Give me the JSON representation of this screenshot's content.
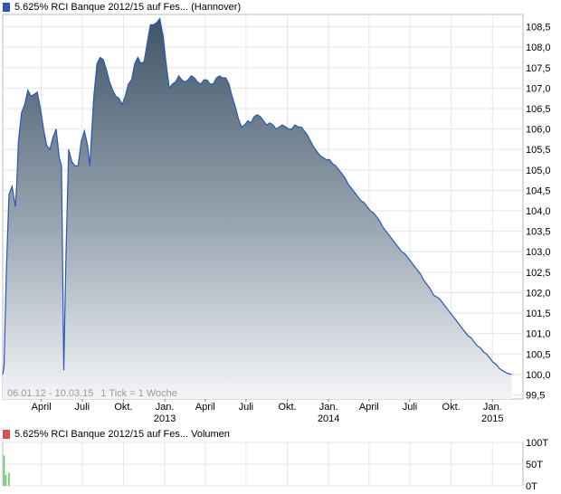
{
  "legend_price": {
    "swatch_color": "#2a56b8",
    "label": "5.625% RCI Banque 2012/15 auf Fes...",
    "exchange": "(Hannover)"
  },
  "legend_volume": {
    "swatch_color": "#d9534f",
    "label": "5.625% RCI Banque 2012/15 auf Fes...",
    "suffix": "Volumen"
  },
  "info": {
    "range": "06.01.12 - 10.03.15",
    "tick": "1 Tick = 1 Woche"
  },
  "chart_data": [
    {
      "type": "area",
      "title": "5.625% RCI Banque 2012/15 auf Fes... (Hannover)",
      "x_range": [
        "2012-01-06",
        "2015-03-10"
      ],
      "ylim": [
        99.4,
        108.8
      ],
      "y_ticks": [
        "99,5",
        "100,0",
        "100,5",
        "101,0",
        "101,5",
        "102,0",
        "102,5",
        "103,0",
        "103,5",
        "104,0",
        "104,5",
        "105,0",
        "105,5",
        "106,0",
        "106,5",
        "107,0",
        "107,5",
        "108,0",
        "108,5"
      ],
      "x_tick_labels": [
        {
          "date": "2012-04-01",
          "label": "April"
        },
        {
          "date": "2012-07-01",
          "label": "Juli"
        },
        {
          "date": "2012-10-01",
          "label": "Okt."
        },
        {
          "date": "2013-01-01",
          "label": "Jan.",
          "year": "2013"
        },
        {
          "date": "2013-04-01",
          "label": "April"
        },
        {
          "date": "2013-07-01",
          "label": "Juli"
        },
        {
          "date": "2013-10-01",
          "label": "Okt."
        },
        {
          "date": "2014-01-01",
          "label": "Jan.",
          "year": "2014"
        },
        {
          "date": "2014-04-01",
          "label": "April"
        },
        {
          "date": "2014-07-01",
          "label": "Juli"
        },
        {
          "date": "2014-10-01",
          "label": "Okt."
        },
        {
          "date": "2015-01-01",
          "label": "Jan.",
          "year": "2015"
        }
      ],
      "grid": true,
      "line_color": "#2a56b8",
      "fill_top_color": "#3f5566",
      "fill_bottom_color": "#f4f5f7",
      "series": [
        {
          "points": [
            [
              "2012-01-06",
              100.0
            ],
            [
              "2012-01-09",
              100.2
            ],
            [
              "2012-01-14",
              102.5
            ],
            [
              "2012-01-20",
              104.4
            ],
            [
              "2012-01-27",
              104.6
            ],
            [
              "2012-02-03",
              104.1
            ],
            [
              "2012-02-06",
              104.6
            ],
            [
              "2012-02-10",
              105.7
            ],
            [
              "2012-02-17",
              106.4
            ],
            [
              "2012-02-24",
              106.6
            ],
            [
              "2012-03-02",
              106.95
            ],
            [
              "2012-03-09",
              106.8
            ],
            [
              "2012-03-16",
              106.85
            ],
            [
              "2012-03-23",
              106.9
            ],
            [
              "2012-03-30",
              106.5
            ],
            [
              "2012-04-06",
              106.0
            ],
            [
              "2012-04-13",
              105.6
            ],
            [
              "2012-04-20",
              105.5
            ],
            [
              "2012-04-27",
              105.8
            ],
            [
              "2012-05-04",
              106.0
            ],
            [
              "2012-05-11",
              105.3
            ],
            [
              "2012-05-16",
              105.1
            ],
            [
              "2012-05-21",
              100.1
            ],
            [
              "2012-05-26",
              103.0
            ],
            [
              "2012-06-01",
              105.5
            ],
            [
              "2012-06-08",
              105.2
            ],
            [
              "2012-06-15",
              105.1
            ],
            [
              "2012-06-22",
              105.1
            ],
            [
              "2012-06-29",
              105.7
            ],
            [
              "2012-07-06",
              105.95
            ],
            [
              "2012-07-13",
              105.6
            ],
            [
              "2012-07-18",
              105.1
            ],
            [
              "2012-07-27",
              106.8
            ],
            [
              "2012-08-03",
              107.6
            ],
            [
              "2012-08-10",
              107.75
            ],
            [
              "2012-08-17",
              107.7
            ],
            [
              "2012-08-24",
              107.45
            ],
            [
              "2012-08-31",
              107.15
            ],
            [
              "2012-09-07",
              106.95
            ],
            [
              "2012-09-14",
              106.8
            ],
            [
              "2012-09-21",
              106.75
            ],
            [
              "2012-09-28",
              106.6
            ],
            [
              "2012-10-05",
              106.8
            ],
            [
              "2012-10-12",
              107.1
            ],
            [
              "2012-10-19",
              107.2
            ],
            [
              "2012-10-26",
              107.6
            ],
            [
              "2012-11-02",
              107.75
            ],
            [
              "2012-11-09",
              107.6
            ],
            [
              "2012-11-16",
              107.65
            ],
            [
              "2012-11-23",
              108.1
            ],
            [
              "2012-11-30",
              108.55
            ],
            [
              "2012-12-07",
              108.55
            ],
            [
              "2012-12-14",
              108.6
            ],
            [
              "2012-12-21",
              108.7
            ],
            [
              "2012-12-28",
              108.3
            ],
            [
              "2013-01-04",
              107.6
            ],
            [
              "2013-01-11",
              107.0
            ],
            [
              "2013-01-18",
              107.1
            ],
            [
              "2013-01-25",
              107.15
            ],
            [
              "2013-02-01",
              107.3
            ],
            [
              "2013-02-08",
              107.2
            ],
            [
              "2013-02-15",
              107.15
            ],
            [
              "2013-02-22",
              107.2
            ],
            [
              "2013-03-01",
              107.3
            ],
            [
              "2013-03-08",
              107.25
            ],
            [
              "2013-03-15",
              107.15
            ],
            [
              "2013-03-22",
              107.1
            ],
            [
              "2013-03-29",
              107.2
            ],
            [
              "2013-04-05",
              107.2
            ],
            [
              "2013-04-12",
              107.1
            ],
            [
              "2013-04-19",
              107.1
            ],
            [
              "2013-04-26",
              107.25
            ],
            [
              "2013-05-03",
              107.3
            ],
            [
              "2013-05-10",
              107.25
            ],
            [
              "2013-05-17",
              107.25
            ],
            [
              "2013-05-24",
              107.1
            ],
            [
              "2013-05-31",
              106.8
            ],
            [
              "2013-06-07",
              106.55
            ],
            [
              "2013-06-14",
              106.25
            ],
            [
              "2013-06-21",
              106.05
            ],
            [
              "2013-06-28",
              106.1
            ],
            [
              "2013-07-05",
              106.2
            ],
            [
              "2013-07-12",
              106.15
            ],
            [
              "2013-07-19",
              106.3
            ],
            [
              "2013-07-26",
              106.35
            ],
            [
              "2013-08-02",
              106.3
            ],
            [
              "2013-08-09",
              106.2
            ],
            [
              "2013-08-16",
              106.1
            ],
            [
              "2013-08-23",
              106.15
            ],
            [
              "2013-08-30",
              106.1
            ],
            [
              "2013-09-06",
              106.0
            ],
            [
              "2013-09-13",
              106.05
            ],
            [
              "2013-09-20",
              106.1
            ],
            [
              "2013-09-27",
              106.05
            ],
            [
              "2013-10-04",
              106.0
            ],
            [
              "2013-10-11",
              106.0
            ],
            [
              "2013-10-18",
              106.1
            ],
            [
              "2013-10-25",
              106.05
            ],
            [
              "2013-11-01",
              106.05
            ],
            [
              "2013-11-08",
              105.95
            ],
            [
              "2013-11-15",
              105.85
            ],
            [
              "2013-11-22",
              105.7
            ],
            [
              "2013-11-29",
              105.55
            ],
            [
              "2013-12-06",
              105.45
            ],
            [
              "2013-12-13",
              105.35
            ],
            [
              "2013-12-20",
              105.3
            ],
            [
              "2013-12-27",
              105.25
            ],
            [
              "2014-01-03",
              105.25
            ],
            [
              "2014-01-10",
              105.15
            ],
            [
              "2014-01-17",
              105.1
            ],
            [
              "2014-01-24",
              105.0
            ],
            [
              "2014-01-31",
              104.9
            ],
            [
              "2014-02-07",
              104.8
            ],
            [
              "2014-02-14",
              104.65
            ],
            [
              "2014-02-21",
              104.55
            ],
            [
              "2014-02-28",
              104.45
            ],
            [
              "2014-03-07",
              104.35
            ],
            [
              "2014-03-14",
              104.25
            ],
            [
              "2014-03-21",
              104.2
            ],
            [
              "2014-03-28",
              104.1
            ],
            [
              "2014-04-04",
              104.0
            ],
            [
              "2014-04-11",
              103.95
            ],
            [
              "2014-04-18",
              103.85
            ],
            [
              "2014-04-25",
              103.75
            ],
            [
              "2014-05-02",
              103.6
            ],
            [
              "2014-05-09",
              103.5
            ],
            [
              "2014-05-16",
              103.4
            ],
            [
              "2014-05-23",
              103.3
            ],
            [
              "2014-05-30",
              103.2
            ],
            [
              "2014-06-06",
              103.1
            ],
            [
              "2014-06-13",
              103.0
            ],
            [
              "2014-06-20",
              102.95
            ],
            [
              "2014-06-27",
              102.85
            ],
            [
              "2014-07-04",
              102.75
            ],
            [
              "2014-07-11",
              102.65
            ],
            [
              "2014-07-18",
              102.55
            ],
            [
              "2014-07-25",
              102.45
            ],
            [
              "2014-08-01",
              102.3
            ],
            [
              "2014-08-08",
              102.2
            ],
            [
              "2014-08-15",
              102.1
            ],
            [
              "2014-08-22",
              101.95
            ],
            [
              "2014-08-29",
              101.9
            ],
            [
              "2014-09-05",
              101.85
            ],
            [
              "2014-09-12",
              101.75
            ],
            [
              "2014-09-19",
              101.65
            ],
            [
              "2014-09-26",
              101.55
            ],
            [
              "2014-10-03",
              101.45
            ],
            [
              "2014-10-10",
              101.35
            ],
            [
              "2014-10-17",
              101.25
            ],
            [
              "2014-10-24",
              101.15
            ],
            [
              "2014-10-31",
              101.05
            ],
            [
              "2014-11-07",
              100.95
            ],
            [
              "2014-11-14",
              100.9
            ],
            [
              "2014-11-21",
              100.8
            ],
            [
              "2014-11-28",
              100.7
            ],
            [
              "2014-12-05",
              100.65
            ],
            [
              "2014-12-12",
              100.55
            ],
            [
              "2014-12-19",
              100.5
            ],
            [
              "2014-12-26",
              100.4
            ],
            [
              "2015-01-02",
              100.3
            ],
            [
              "2015-01-09",
              100.25
            ],
            [
              "2015-01-16",
              100.15
            ],
            [
              "2015-01-23",
              100.1
            ],
            [
              "2015-01-30",
              100.05
            ],
            [
              "2015-02-06",
              100.02
            ],
            [
              "2015-02-13",
              100.0
            ]
          ]
        }
      ]
    },
    {
      "type": "bar",
      "title": "5.625% RCI Banque 2012/15 auf Fes... Volumen",
      "ylim": [
        0,
        100
      ],
      "y_ticks": [
        "0T",
        "50T",
        "100T"
      ],
      "grid": true,
      "bar_color": "#5bc95b",
      "series": [
        {
          "points": [
            [
              "2012-01-09",
              70
            ],
            [
              "2012-01-13",
              25
            ],
            [
              "2012-01-20",
              30
            ]
          ]
        }
      ]
    }
  ]
}
